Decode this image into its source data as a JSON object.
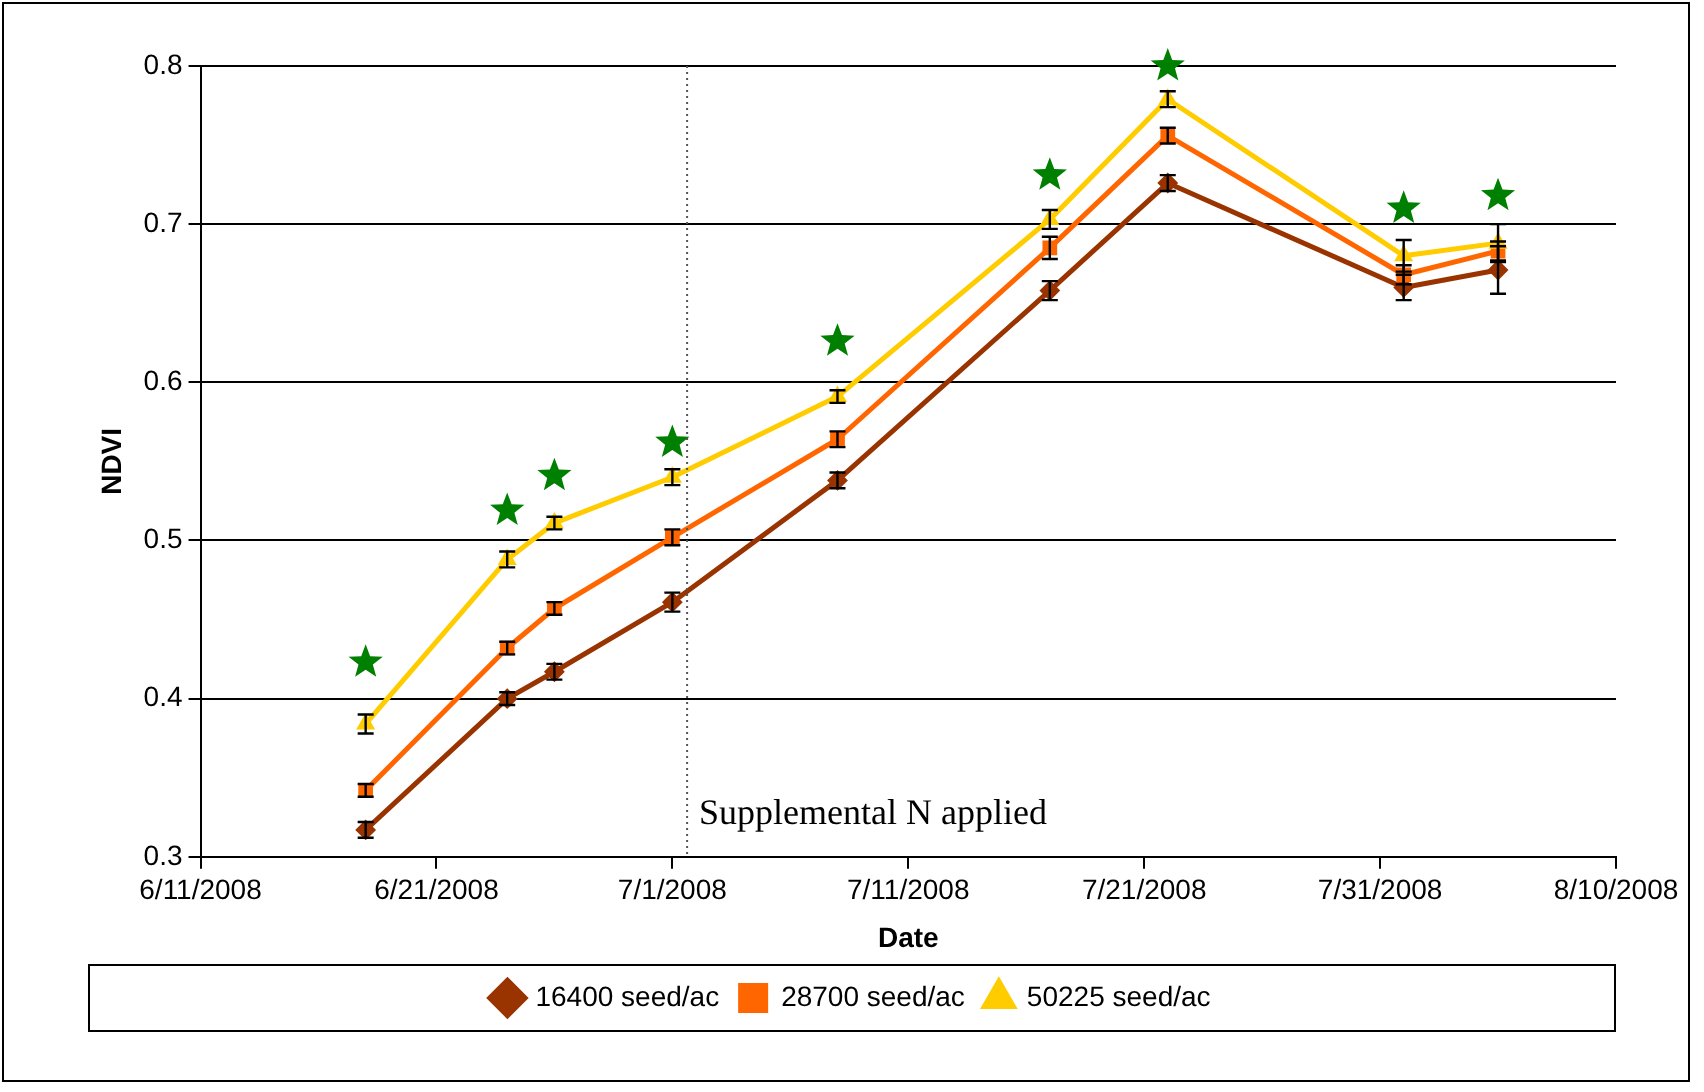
{
  "chart_data": {
    "type": "line",
    "xlabel": "Date",
    "ylabel": "NDVI",
    "x": [
      "2008-06-18",
      "2008-06-24",
      "2008-06-26",
      "2008-07-01",
      "2008-07-08",
      "2008-07-17",
      "2008-07-22",
      "2008-08-01",
      "2008-08-05"
    ],
    "series": [
      {
        "name": "16400 seed/ac",
        "color": "#993300",
        "marker": "diamond",
        "values": [
          0.317,
          0.4,
          0.417,
          0.461,
          0.538,
          0.658,
          0.726,
          0.66,
          0.671
        ],
        "errors": [
          0.005,
          0.004,
          0.005,
          0.006,
          0.005,
          0.006,
          0.005,
          0.008,
          0.015
        ]
      },
      {
        "name": "28700 seed/ac",
        "color": "#ff6600",
        "marker": "square",
        "values": [
          0.342,
          0.432,
          0.457,
          0.502,
          0.564,
          0.685,
          0.756,
          0.668,
          0.683
        ],
        "errors": [
          0.004,
          0.004,
          0.004,
          0.005,
          0.005,
          0.007,
          0.005,
          0.006,
          0.006
        ]
      },
      {
        "name": "50225 seed/ac",
        "color": "#ffcc00",
        "marker": "triangle",
        "values": [
          0.384,
          0.488,
          0.511,
          0.54,
          0.591,
          0.703,
          0.779,
          0.68,
          0.688
        ],
        "errors": [
          0.006,
          0.005,
          0.004,
          0.005,
          0.004,
          0.006,
          0.005,
          0.01,
          0.012
        ]
      },
      {
        "type": "scatter",
        "color": "#008000",
        "marker": "star",
        "values": [
          0.423,
          0.519,
          0.541,
          0.562,
          0.626,
          0.731,
          0.8,
          0.71,
          0.718
        ]
      }
    ],
    "xlim": [
      "2008-06-11",
      "2008-08-10"
    ],
    "xticks": [
      {
        "value": "2008-06-11",
        "label": "6/11/2008"
      },
      {
        "value": "2008-06-21",
        "label": "6/21/2008"
      },
      {
        "value": "2008-07-01",
        "label": "7/1/2008"
      },
      {
        "value": "2008-07-11",
        "label": "7/11/2008"
      },
      {
        "value": "2008-07-21",
        "label": "7/21/2008"
      },
      {
        "value": "2008-07-31",
        "label": "7/31/2008"
      },
      {
        "value": "2008-08-10",
        "label": "8/10/2008"
      }
    ],
    "ylim": [
      0.3,
      0.8
    ],
    "yticks": [
      0.3,
      0.4,
      0.5,
      0.6,
      0.7,
      0.8
    ],
    "ref_lines": [
      {
        "axis": "x",
        "value": "2008-07-01T15:00",
        "label": "Supplemental N applied",
        "line_style": "dotted",
        "color": "#555555"
      }
    ],
    "grid": "y",
    "legend": "bottom"
  }
}
